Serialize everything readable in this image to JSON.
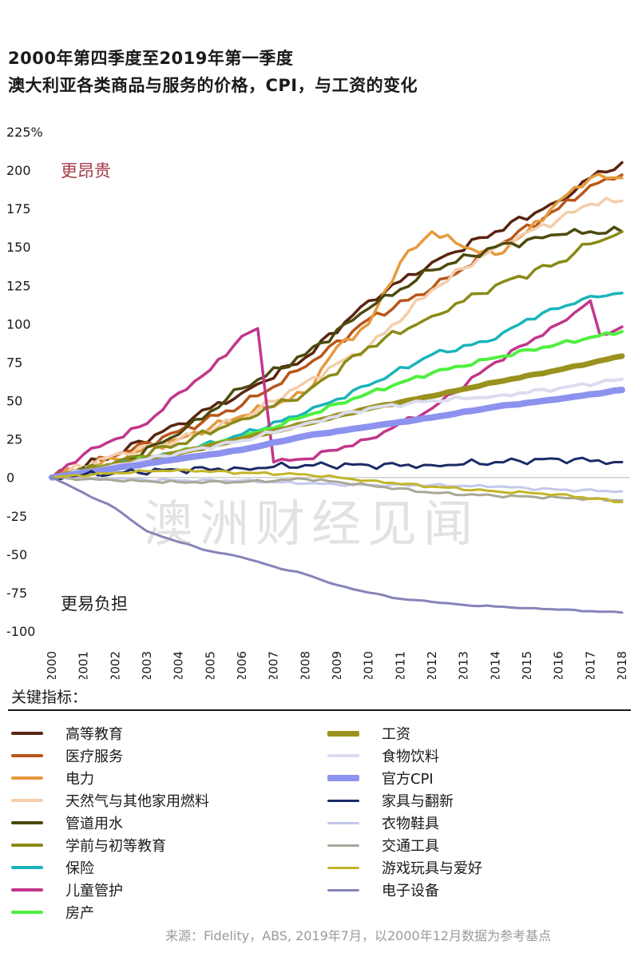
{
  "title_lines": [
    "2000年第四季度至2019年第一季度",
    "澳大利亚各类商品与服务的价格，CPI，与工资的变化"
  ],
  "annotation_top": "更昂贵",
  "annotation_bottom": "更易负担",
  "watermark": "澳洲财经见闻",
  "legend_title": "关键指标：",
  "source": "来源：Fidelity，ABS, 2019年7月，以2000年12月数据为参考基点",
  "colors": {
    "annotation_top": "#a33a4a"
  },
  "chart_data": {
    "type": "line",
    "y_tick_labels": [
      "225%",
      "200",
      "175",
      "150",
      "125",
      "100",
      "75",
      "50",
      "25",
      "0",
      "-25",
      "-50",
      "-75",
      "-100"
    ],
    "y_ticks": [
      225,
      200,
      175,
      150,
      125,
      100,
      75,
      50,
      25,
      0,
      -25,
      -50,
      -75,
      -100
    ],
    "ylim": [
      -100,
      225
    ],
    "x_tick_labels": [
      "2000",
      "2001",
      "2002",
      "2003",
      "2004",
      "2005",
      "2006",
      "2007",
      "2008",
      "2009",
      "2010",
      "2011",
      "2012",
      "2013",
      "2014",
      "2015",
      "2016",
      "2017",
      "2018"
    ],
    "xlim": [
      2000,
      2018
    ],
    "series": [
      {
        "name": "高等教育",
        "color": "#5a2410",
        "width": 3.5,
        "wiggle": 3,
        "points": [
          [
            2000,
            0
          ],
          [
            2002,
            15
          ],
          [
            2004,
            35
          ],
          [
            2006,
            55
          ],
          [
            2008,
            78
          ],
          [
            2010,
            115
          ],
          [
            2012,
            140
          ],
          [
            2014,
            160
          ],
          [
            2016,
            180
          ],
          [
            2017,
            195
          ],
          [
            2018,
            205
          ]
        ]
      },
      {
        "name": "医疗服务",
        "color": "#b8561a",
        "width": 3.5,
        "wiggle": 3,
        "points": [
          [
            2000,
            0
          ],
          [
            2002,
            14
          ],
          [
            2004,
            30
          ],
          [
            2006,
            47
          ],
          [
            2008,
            72
          ],
          [
            2010,
            103
          ],
          [
            2012,
            123
          ],
          [
            2014,
            150
          ],
          [
            2016,
            175
          ],
          [
            2017,
            190
          ],
          [
            2018,
            197
          ]
        ]
      },
      {
        "name": "电力",
        "color": "#e69a3c",
        "width": 3.5,
        "wiggle": 3,
        "points": [
          [
            2000,
            0
          ],
          [
            2002,
            12
          ],
          [
            2004,
            25
          ],
          [
            2006,
            40
          ],
          [
            2008,
            55
          ],
          [
            2009,
            85
          ],
          [
            2010,
            100
          ],
          [
            2011,
            140
          ],
          [
            2012,
            160
          ],
          [
            2013,
            150
          ],
          [
            2014,
            145
          ],
          [
            2015,
            160
          ],
          [
            2016,
            180
          ],
          [
            2017,
            195
          ],
          [
            2018,
            195
          ]
        ]
      },
      {
        "name": "天然气与其他家用燃料",
        "color": "#f4cdaa",
        "width": 3.5,
        "wiggle": 3,
        "points": [
          [
            2000,
            0
          ],
          [
            2002,
            15
          ],
          [
            2004,
            25
          ],
          [
            2006,
            38
          ],
          [
            2008,
            62
          ],
          [
            2010,
            85
          ],
          [
            2012,
            122
          ],
          [
            2014,
            150
          ],
          [
            2016,
            168
          ],
          [
            2017,
            178
          ],
          [
            2018,
            180
          ]
        ]
      },
      {
        "name": "管道用水",
        "color": "#4d4a0e",
        "width": 3.5,
        "wiggle": 3,
        "points": [
          [
            2000,
            0
          ],
          [
            2002,
            8
          ],
          [
            2004,
            28
          ],
          [
            2006,
            58
          ],
          [
            2008,
            80
          ],
          [
            2010,
            110
          ],
          [
            2012,
            135
          ],
          [
            2014,
            150
          ],
          [
            2016,
            158
          ],
          [
            2017,
            160
          ],
          [
            2018,
            160
          ]
        ]
      },
      {
        "name": "学前与初等教育",
        "color": "#8a8a18",
        "width": 3.5,
        "wiggle": 3,
        "points": [
          [
            2000,
            0
          ],
          [
            2002,
            10
          ],
          [
            2004,
            22
          ],
          [
            2006,
            38
          ],
          [
            2008,
            55
          ],
          [
            2010,
            85
          ],
          [
            2012,
            105
          ],
          [
            2014,
            125
          ],
          [
            2016,
            140
          ],
          [
            2017,
            152
          ],
          [
            2018,
            160
          ]
        ]
      },
      {
        "name": "保险",
        "color": "#19b4bb",
        "width": 3.5,
        "wiggle": 2,
        "points": [
          [
            2000,
            0
          ],
          [
            2002,
            8
          ],
          [
            2004,
            16
          ],
          [
            2006,
            28
          ],
          [
            2008,
            42
          ],
          [
            2010,
            60
          ],
          [
            2012,
            80
          ],
          [
            2014,
            90
          ],
          [
            2015,
            103
          ],
          [
            2016,
            110
          ],
          [
            2017,
            118
          ],
          [
            2018,
            120
          ]
        ]
      },
      {
        "name": "儿童管护",
        "color": "#c2368c",
        "width": 3.5,
        "wiggle": 2,
        "points": [
          [
            2000,
            0
          ],
          [
            2001,
            15
          ],
          [
            2002,
            25
          ],
          [
            2003,
            35
          ],
          [
            2004,
            55
          ],
          [
            2005,
            70
          ],
          [
            2006,
            92
          ],
          [
            2006.5,
            97
          ],
          [
            2007,
            10
          ],
          [
            2008,
            12
          ],
          [
            2010,
            25
          ],
          [
            2012,
            45
          ],
          [
            2014,
            75
          ],
          [
            2016,
            100
          ],
          [
            2017,
            115
          ],
          [
            2017.3,
            93
          ],
          [
            2018,
            98
          ]
        ]
      },
      {
        "name": "房产",
        "color": "#4ef03f",
        "width": 4,
        "wiggle": 1.5,
        "points": [
          [
            2000,
            0
          ],
          [
            2002,
            8
          ],
          [
            2004,
            17
          ],
          [
            2006,
            26
          ],
          [
            2008,
            40
          ],
          [
            2010,
            55
          ],
          [
            2012,
            68
          ],
          [
            2014,
            78
          ],
          [
            2016,
            87
          ],
          [
            2018,
            95
          ]
        ]
      },
      {
        "name": "工资",
        "color": "#9a921e",
        "width": 7,
        "wiggle": 0.4,
        "points": [
          [
            2000,
            0
          ],
          [
            2002,
            8
          ],
          [
            2004,
            16
          ],
          [
            2006,
            25
          ],
          [
            2008,
            35
          ],
          [
            2010,
            45
          ],
          [
            2012,
            53
          ],
          [
            2014,
            62
          ],
          [
            2016,
            70
          ],
          [
            2018,
            79
          ]
        ]
      },
      {
        "name": "食物饮料",
        "color": "#dcdcef",
        "width": 4,
        "wiggle": 1.5,
        "points": [
          [
            2000,
            0
          ],
          [
            2002,
            8
          ],
          [
            2004,
            16
          ],
          [
            2006,
            24
          ],
          [
            2008,
            35
          ],
          [
            2010,
            45
          ],
          [
            2012,
            50
          ],
          [
            2014,
            53
          ],
          [
            2016,
            58
          ],
          [
            2018,
            64
          ]
        ]
      },
      {
        "name": "官方CPI",
        "color": "#8c92ee",
        "width": 8,
        "wiggle": 0.3,
        "points": [
          [
            2000,
            0
          ],
          [
            2002,
            6
          ],
          [
            2004,
            12
          ],
          [
            2006,
            18
          ],
          [
            2008,
            27
          ],
          [
            2010,
            33
          ],
          [
            2012,
            39
          ],
          [
            2014,
            46
          ],
          [
            2016,
            51
          ],
          [
            2018,
            57
          ]
        ]
      },
      {
        "name": "家具与翻新",
        "color": "#1c2a66",
        "width": 3,
        "wiggle": 2.5,
        "points": [
          [
            2000,
            0
          ],
          [
            2002,
            3
          ],
          [
            2004,
            5
          ],
          [
            2006,
            6
          ],
          [
            2008,
            8
          ],
          [
            2010,
            8
          ],
          [
            2012,
            8
          ],
          [
            2014,
            10
          ],
          [
            2016,
            12
          ],
          [
            2018,
            10
          ]
        ]
      },
      {
        "name": "衣物鞋具",
        "color": "#c5c8ec",
        "width": 3,
        "wiggle": 1,
        "points": [
          [
            2000,
            0
          ],
          [
            2002,
            -1
          ],
          [
            2004,
            -2
          ],
          [
            2006,
            -2
          ],
          [
            2008,
            -4
          ],
          [
            2010,
            -5
          ],
          [
            2012,
            -5
          ],
          [
            2014,
            -6
          ],
          [
            2016,
            -8
          ],
          [
            2018,
            -9
          ]
        ]
      },
      {
        "name": "交通工具",
        "color": "#a8a898",
        "width": 3,
        "wiggle": 1,
        "points": [
          [
            2000,
            0
          ],
          [
            2002,
            -2
          ],
          [
            2004,
            -3
          ],
          [
            2006,
            -3
          ],
          [
            2008,
            -1
          ],
          [
            2010,
            -5
          ],
          [
            2012,
            -10
          ],
          [
            2014,
            -12
          ],
          [
            2016,
            -13
          ],
          [
            2018,
            -15
          ]
        ]
      },
      {
        "name": "游戏玩具与爱好",
        "color": "#c2b528",
        "width": 3,
        "wiggle": 1,
        "points": [
          [
            2000,
            0
          ],
          [
            2002,
            3
          ],
          [
            2004,
            5
          ],
          [
            2006,
            3
          ],
          [
            2008,
            2
          ],
          [
            2010,
            -2
          ],
          [
            2012,
            -6
          ],
          [
            2014,
            -9
          ],
          [
            2016,
            -11
          ],
          [
            2018,
            -16
          ]
        ]
      },
      {
        "name": "电子设备",
        "color": "#8584b9",
        "width": 3,
        "wiggle": 0.5,
        "points": [
          [
            2000,
            0
          ],
          [
            2001,
            -10
          ],
          [
            2002,
            -20
          ],
          [
            2003,
            -35
          ],
          [
            2004,
            -42
          ],
          [
            2005,
            -48
          ],
          [
            2006,
            -52
          ],
          [
            2007,
            -58
          ],
          [
            2008,
            -63
          ],
          [
            2009,
            -70
          ],
          [
            2010,
            -75
          ],
          [
            2011,
            -79
          ],
          [
            2012,
            -81
          ],
          [
            2013,
            -83
          ],
          [
            2014,
            -84
          ],
          [
            2015,
            -85
          ],
          [
            2016,
            -86
          ],
          [
            2017,
            -87
          ],
          [
            2018,
            -88
          ]
        ]
      }
    ]
  },
  "legend": {
    "left": [
      "高等教育",
      "医疗服务",
      "电力",
      "天然气与其他家用燃料",
      "管道用水",
      "学前与初等教育",
      "保险",
      "儿童管护",
      "房产"
    ],
    "right": [
      "工资",
      "食物饮料",
      "官方CPI",
      "家具与翻新",
      "衣物鞋具",
      "交通工具",
      "游戏玩具与爱好",
      "电子设备"
    ]
  }
}
